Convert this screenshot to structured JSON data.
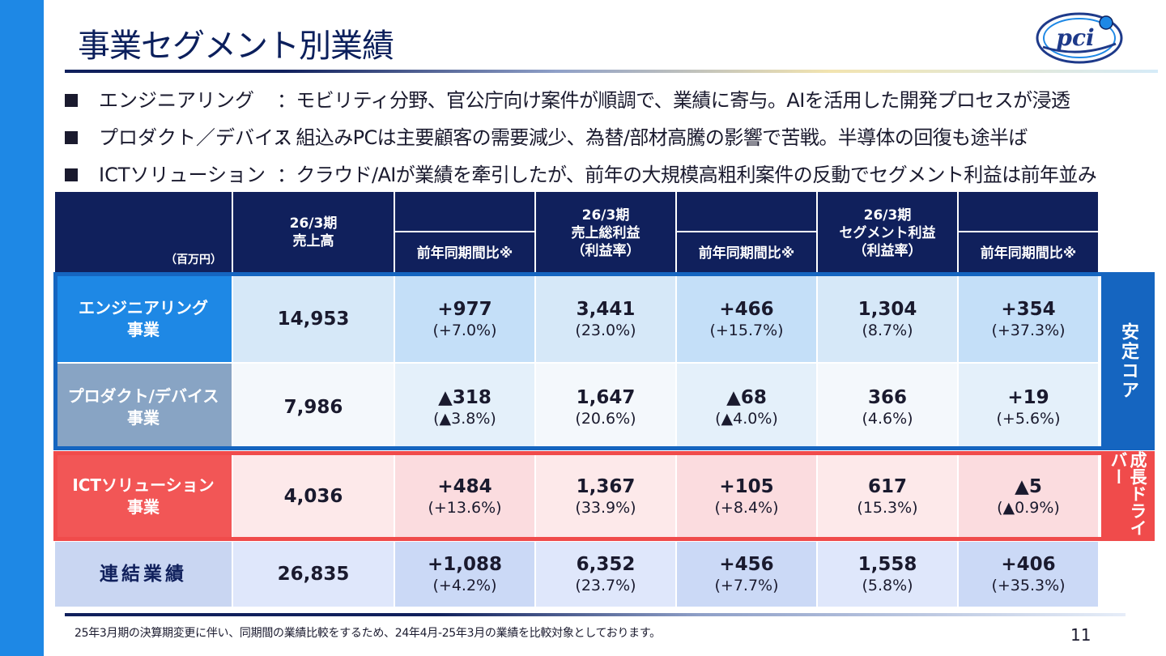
{
  "title": "事業セグメント別業績",
  "logo_text": "pci",
  "bullets": [
    {
      "segment": "エンジニアリング",
      "description": "：モビリティ分野、官公庁向け案件が順調で、業績に寄与。AIを活用した開発プロセスが浸透"
    },
    {
      "segment": "プロダクト／デバイス",
      "description": "：組込みPCは主要顧客の需要減少、為替/部材高騰の影響で苦戦。半導体の回復も途半ば"
    },
    {
      "segment": "ICTソリューション",
      "description": "：クラウド/AIが業績を牽引したが、前年の大規模高粗利案件の反動でセグメント利益は前年並み"
    }
  ],
  "table": {
    "unit_label": "（百万円）",
    "headers": {
      "sales": "26/3期\n売上高",
      "gross_profit": "26/3期\n売上総利益\n（利益率）",
      "segment_profit": "26/3期\nセグメント利益\n（利益率）",
      "yoy": "前年同期間比※"
    },
    "rows": [
      {
        "label": "エンジニアリング\n事業",
        "sales": "14,953",
        "sales_yoy": "+977",
        "sales_yoy_pct": "(+7.0%)",
        "gp": "3,441",
        "gp_rate": "(23.0%)",
        "gp_yoy": "+466",
        "gp_yoy_pct": "(+15.7%)",
        "sp": "1,304",
        "sp_rate": "(8.7%)",
        "sp_yoy": "+354",
        "sp_yoy_pct": "(+37.3%)"
      },
      {
        "label": "プロダクト/デバイス\n事業",
        "sales": "7,986",
        "sales_yoy": "▲318",
        "sales_yoy_pct": "(▲3.8%)",
        "gp": "1,647",
        "gp_rate": "(20.6%)",
        "gp_yoy": "▲68",
        "gp_yoy_pct": "(▲4.0%)",
        "sp": "366",
        "sp_rate": "(4.6%)",
        "sp_yoy": "+19",
        "sp_yoy_pct": "(+5.6%)"
      },
      {
        "label": "ICTソリューション\n事業",
        "sales": "4,036",
        "sales_yoy": "+484",
        "sales_yoy_pct": "(+13.6%)",
        "gp": "1,367",
        "gp_rate": "(33.9%)",
        "gp_yoy": "+105",
        "gp_yoy_pct": "(+8.4%)",
        "sp": "617",
        "sp_rate": "(15.3%)",
        "sp_yoy": "▲5",
        "sp_yoy_pct": "(▲0.9%)"
      },
      {
        "label": "連結業績",
        "sales": "26,835",
        "sales_yoy": "+1,088",
        "sales_yoy_pct": "(+4.2%)",
        "gp": "6,352",
        "gp_rate": "(23.7%)",
        "gp_yoy": "+456",
        "gp_yoy_pct": "(+7.7%)",
        "sp": "1,558",
        "sp_rate": "(5.8%)",
        "sp_yoy": "+406",
        "sp_yoy_pct": "(+35.3%)"
      }
    ],
    "side_labels": {
      "stable_core": "安定コア",
      "growth_driver": "成長ドライバー"
    }
  },
  "footnote": "25年3月期の決算期変更に伴い、同期間の業績比較をするため、24年4月-25年3月の業績を比較対象としております。",
  "page_number": "11",
  "colors": {
    "navy": "#10205c",
    "blue": "#1e88e5",
    "frame_blue": "#1565c0",
    "red": "#f04b4b",
    "gray_blue": "#88a4c4"
  }
}
